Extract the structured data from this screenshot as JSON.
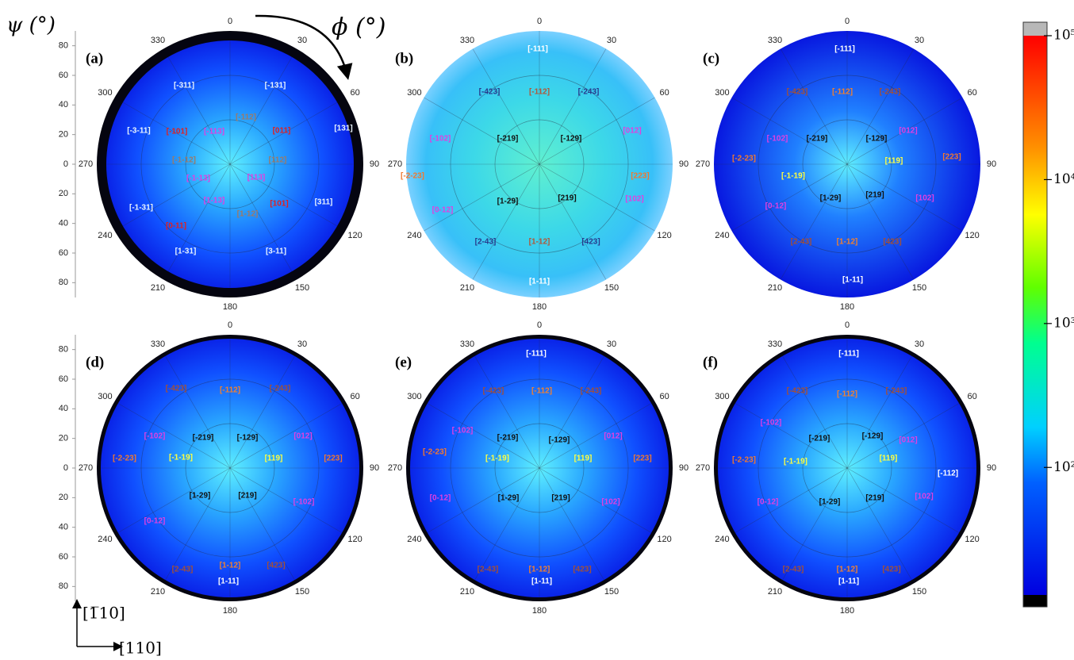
{
  "axis_labels": {
    "psi": "ψ (°)",
    "phi": "ϕ (°)"
  },
  "psi_ticks": [
    {
      "value": -80,
      "label": "80"
    },
    {
      "value": -60,
      "label": "60"
    },
    {
      "value": -40,
      "label": "40"
    },
    {
      "value": -20,
      "label": "20"
    },
    0,
    20,
    40,
    60,
    80
  ],
  "phi_ticks": [
    0,
    30,
    60,
    90,
    120,
    150,
    180,
    210,
    240,
    270,
    300,
    330
  ],
  "panels": [
    {
      "label": "(a)",
      "poles": [
        {
          "text": "[-311]",
          "color": "#e8f4ff"
        },
        {
          "text": "[-131]",
          "color": "#e8f4ff"
        },
        {
          "text": "[-112]",
          "color": "#9a7a6a"
        },
        {
          "text": "[-3-11]",
          "color": "#e8f4ff"
        },
        {
          "text": "[-101]",
          "color": "#e02020"
        },
        {
          "text": "[-113]",
          "color": "#e040e0"
        },
        {
          "text": "[011]",
          "color": "#e02020"
        },
        {
          "text": "[131]",
          "color": "#e8f4ff"
        },
        {
          "text": "[-1-12]",
          "color": "#9a7a6a"
        },
        {
          "text": "[112]",
          "color": "#9a7a6a"
        },
        {
          "text": "[-1-13]",
          "color": "#e040e0"
        },
        {
          "text": "[113]",
          "color": "#e040e0"
        },
        {
          "text": "[1-13]",
          "color": "#e040e0"
        },
        {
          "text": "[101]",
          "color": "#e02020"
        },
        {
          "text": "[-1-31]",
          "color": "#e8f4ff"
        },
        {
          "text": "[311]",
          "color": "#e8f4ff"
        },
        {
          "text": "[1-12]",
          "color": "#9a7a6a"
        },
        {
          "text": "[0-11]",
          "color": "#e02020"
        },
        {
          "text": "[1-31]",
          "color": "#e8f4ff"
        },
        {
          "text": "[3-11]",
          "color": "#e8f4ff"
        }
      ]
    },
    {
      "label": "(b)",
      "poles": [
        {
          "text": "[-111]",
          "color": "#ffffff"
        },
        {
          "text": "[-423]",
          "color": "#283a8c"
        },
        {
          "text": "[-112]",
          "color": "#b0583a"
        },
        {
          "text": "[-243]",
          "color": "#283a8c"
        },
        {
          "text": "[-102]",
          "color": "#e040e0"
        },
        {
          "text": "[-219]",
          "color": "#111111"
        },
        {
          "text": "[-129]",
          "color": "#111111"
        },
        {
          "text": "[012]",
          "color": "#e040e0"
        },
        {
          "text": "[-2-23]",
          "color": "#f07830"
        },
        {
          "text": "[223]",
          "color": "#f07830"
        },
        {
          "text": "[1-29]",
          "color": "#111111"
        },
        {
          "text": "[219]",
          "color": "#111111"
        },
        {
          "text": "[0-12]",
          "color": "#e040e0"
        },
        {
          "text": "[102]",
          "color": "#e040e0"
        },
        {
          "text": "[2-43]",
          "color": "#283a8c"
        },
        {
          "text": "[1-12]",
          "color": "#b0583a"
        },
        {
          "text": "[423]",
          "color": "#283a8c"
        },
        {
          "text": "[1-11]",
          "color": "#ffffff"
        }
      ]
    },
    {
      "label": "(c)",
      "poles": [
        {
          "text": "[-111]",
          "color": "#ffffff"
        },
        {
          "text": "[-423]",
          "color": "#a0503a"
        },
        {
          "text": "[-112]",
          "color": "#f08030"
        },
        {
          "text": "[-243]",
          "color": "#a0503a"
        },
        {
          "text": "[-102]",
          "color": "#e040e0"
        },
        {
          "text": "[-219]",
          "color": "#111111"
        },
        {
          "text": "[-129]",
          "color": "#111111"
        },
        {
          "text": "[012]",
          "color": "#e040e0"
        },
        {
          "text": "[-2-23]",
          "color": "#f07830"
        },
        {
          "text": "[119]",
          "color": "#ffff40"
        },
        {
          "text": "[223]",
          "color": "#f07830"
        },
        {
          "text": "[-1-19]",
          "color": "#ffff40"
        },
        {
          "text": "[1-29]",
          "color": "#111111"
        },
        {
          "text": "[219]",
          "color": "#111111"
        },
        {
          "text": "[0-12]",
          "color": "#e040e0"
        },
        {
          "text": "[102]",
          "color": "#e040e0"
        },
        {
          "text": "[2-43]",
          "color": "#a0503a"
        },
        {
          "text": "[1-12]",
          "color": "#f08030"
        },
        {
          "text": "[423]",
          "color": "#a0503a"
        },
        {
          "text": "[1-11]",
          "color": "#ffffff"
        }
      ]
    },
    {
      "label": "(d)",
      "poles": [
        {
          "text": "[-423]",
          "color": "#a0503a"
        },
        {
          "text": "[-112]",
          "color": "#f08030"
        },
        {
          "text": "[-243]",
          "color": "#a0503a"
        },
        {
          "text": "[-102]",
          "color": "#e040e0"
        },
        {
          "text": "[-219]",
          "color": "#111111"
        },
        {
          "text": "[-129]",
          "color": "#111111"
        },
        {
          "text": "[012]",
          "color": "#e040e0"
        },
        {
          "text": "[-2-23]",
          "color": "#f07830"
        },
        {
          "text": "[-1-19]",
          "color": "#ffff40"
        },
        {
          "text": "[119]",
          "color": "#ffff40"
        },
        {
          "text": "[223]",
          "color": "#f07830"
        },
        {
          "text": "[1-29]",
          "color": "#111111"
        },
        {
          "text": "[219]",
          "color": "#111111"
        },
        {
          "text": "[-102]",
          "color": "#e040e0"
        },
        {
          "text": "[0-12]",
          "color": "#e040e0"
        },
        {
          "text": "[2-43]",
          "color": "#a0503a"
        },
        {
          "text": "[1-12]",
          "color": "#f08030"
        },
        {
          "text": "[423]",
          "color": "#a0503a"
        },
        {
          "text": "[1-11]",
          "color": "#ffffff"
        }
      ]
    },
    {
      "label": "(e)",
      "poles": [
        {
          "text": "[-111]",
          "color": "#ffffff"
        },
        {
          "text": "[-423]",
          "color": "#a0503a"
        },
        {
          "text": "[-112]",
          "color": "#f08030"
        },
        {
          "text": "[-243]",
          "color": "#a0503a"
        },
        {
          "text": "[-102]",
          "color": "#e040e0"
        },
        {
          "text": "[-219]",
          "color": "#111111"
        },
        {
          "text": "[-129]",
          "color": "#111111"
        },
        {
          "text": "[012]",
          "color": "#e040e0"
        },
        {
          "text": "[-2-23]",
          "color": "#f07830"
        },
        {
          "text": "[-1-19]",
          "color": "#ffff40"
        },
        {
          "text": "[119]",
          "color": "#ffff40"
        },
        {
          "text": "[223]",
          "color": "#f07830"
        },
        {
          "text": "[0-12]",
          "color": "#e040e0"
        },
        {
          "text": "[1-29]",
          "color": "#111111"
        },
        {
          "text": "[219]",
          "color": "#111111"
        },
        {
          "text": "[102]",
          "color": "#e040e0"
        },
        {
          "text": "[2-43]",
          "color": "#a0503a"
        },
        {
          "text": "[1-12]",
          "color": "#f08030"
        },
        {
          "text": "[423]",
          "color": "#a0503a"
        },
        {
          "text": "[1-11]",
          "color": "#ffffff"
        }
      ]
    },
    {
      "label": "(f)",
      "poles": [
        {
          "text": "[-111]",
          "color": "#ffffff"
        },
        {
          "text": "[-423]",
          "color": "#a0503a"
        },
        {
          "text": "[-112]",
          "color": "#f08030"
        },
        {
          "text": "[-243]",
          "color": "#a0503a"
        },
        {
          "text": "[-102]",
          "color": "#e040e0"
        },
        {
          "text": "[-219]",
          "color": "#111111"
        },
        {
          "text": "[-129]",
          "color": "#111111"
        },
        {
          "text": "[012]",
          "color": "#e040e0"
        },
        {
          "text": "[-2-23]",
          "color": "#f07830"
        },
        {
          "text": "[-1-19]",
          "color": "#ffff40"
        },
        {
          "text": "[119]",
          "color": "#ffff40"
        },
        {
          "text": "[-112]",
          "color": "#ffffff"
        },
        {
          "text": "[0-12]",
          "color": "#e040e0"
        },
        {
          "text": "[1-29]",
          "color": "#111111"
        },
        {
          "text": "[219]",
          "color": "#111111"
        },
        {
          "text": "[102]",
          "color": "#e040e0"
        },
        {
          "text": "[2-43]",
          "color": "#a0503a"
        },
        {
          "text": "[1-12]",
          "color": "#f08030"
        },
        {
          "text": "[423]",
          "color": "#a0503a"
        },
        {
          "text": "[1-11]",
          "color": "#ffffff"
        }
      ]
    }
  ],
  "colorbar": {
    "scale": "log",
    "lim": [
      13,
      100000
    ],
    "ticks": [
      {
        "value": 100000,
        "label": "10⁵"
      },
      {
        "value": 10000,
        "label": "10⁴"
      },
      {
        "value": 1000,
        "label": "10³"
      },
      {
        "value": 100,
        "label": "10²"
      }
    ]
  },
  "directions": [
    "[1̅10]",
    "[110]"
  ]
}
